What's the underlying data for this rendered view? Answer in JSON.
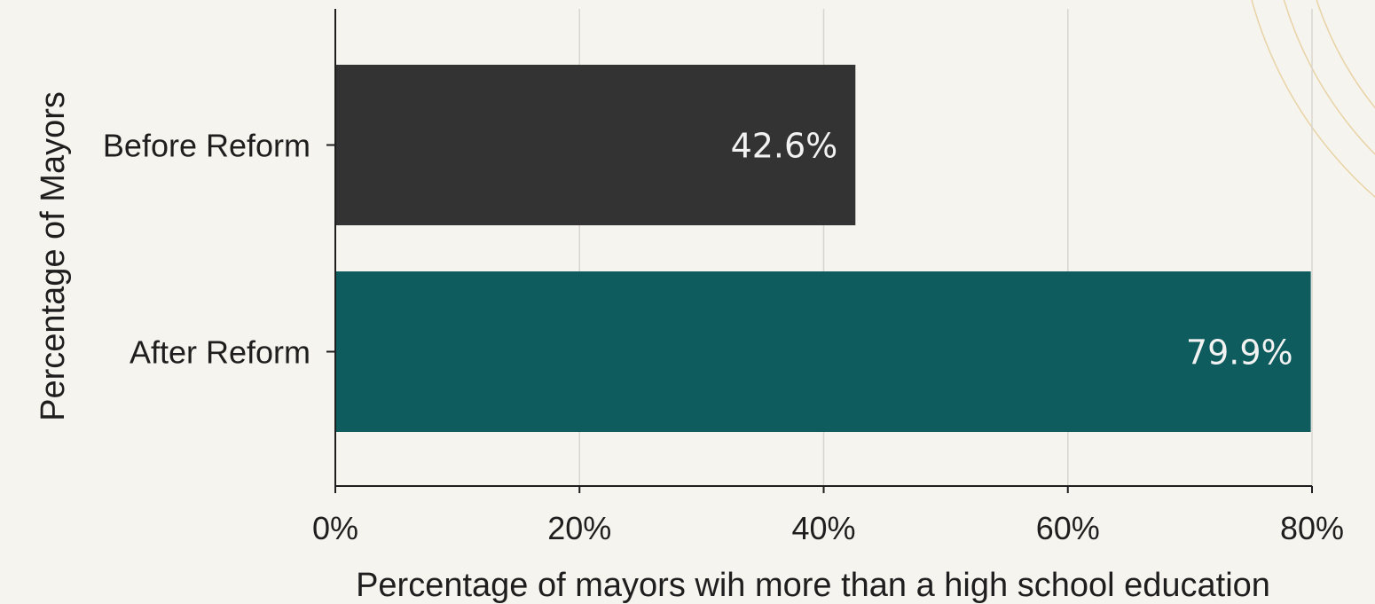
{
  "chart_data": {
    "type": "bar",
    "orientation": "horizontal",
    "categories": [
      "Before Reform",
      "After Reform"
    ],
    "values": [
      42.6,
      79.9
    ],
    "value_labels": [
      "42.6%",
      "79.9%"
    ],
    "bar_colors": [
      "#333333",
      "#0e5c5e"
    ],
    "xlabel": "Percentage of mayors wih more than a high school education",
    "ylabel": "Percentage of Mayors",
    "xlim": [
      0,
      80
    ],
    "x_ticks": [
      0,
      20,
      40,
      60,
      80
    ],
    "x_tick_labels": [
      "0%",
      "20%",
      "40%",
      "60%",
      "80%"
    ],
    "grid": "vertical",
    "legend": "none"
  },
  "colors": {
    "background": "#f6f4ee",
    "grid": "#d8d6cf",
    "axis": "#1e1e1e",
    "decoration": "#e8d3a6"
  }
}
